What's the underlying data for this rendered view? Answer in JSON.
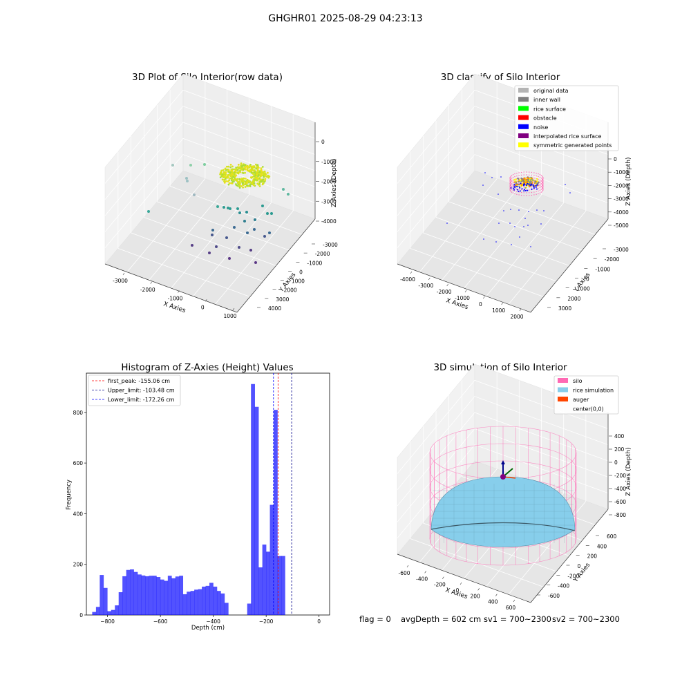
{
  "suptitle": "GHGHR01 2025-08-29 04:23:13",
  "panel_raw": {
    "title": "3D Plot of Silo Interior(row data)",
    "xlabel": "X Axies",
    "ylabel": "Y Axies",
    "zlabel": "Z Axies (Depth)",
    "xticks": [
      "-3000",
      "-2000",
      "-1000",
      "0",
      "1000"
    ],
    "yticks": [
      "-3000",
      "-2000",
      "-1000",
      "0",
      "1000",
      "2000",
      "3000",
      "4000"
    ],
    "zticks": [
      "0",
      "-1000",
      "-2000",
      "-3000",
      "-4000"
    ]
  },
  "panel_classify": {
    "title": "3D classify of Silo Interior",
    "xlabel": "X Axies",
    "ylabel": "Y Axies",
    "zlabel": "Z Axies (Depth)",
    "xticks": [
      "-4000",
      "-3000",
      "-2000",
      "-1000",
      "0",
      "1000",
      "2000"
    ],
    "yticks": [
      "-3000",
      "-2000",
      "-1000",
      "0",
      "1000",
      "2000",
      "3000"
    ],
    "zticks": [
      "0",
      "-1000",
      "-2000",
      "-3000",
      "-4000",
      "-5000"
    ],
    "legend": [
      {
        "label": "original data",
        "color": "#b4b4b4"
      },
      {
        "label": "inner wall",
        "color": "#808080"
      },
      {
        "label": "rice surface",
        "color": "#00ff00"
      },
      {
        "label": "obstacle",
        "color": "#ff0000"
      },
      {
        "label": "noise",
        "color": "#0000ff"
      },
      {
        "label": "interpolated rice surface",
        "color": "#800080"
      },
      {
        "label": "symmetric generated points",
        "color": "#ffff00"
      }
    ]
  },
  "panel_sim": {
    "title": "3D simulation of Silo Interior",
    "xlabel": "X Axies",
    "ylabel": "Y Axies",
    "zlabel": "Z Axies (Depth)",
    "xticks": [
      "-600",
      "-400",
      "-200",
      "0",
      "200",
      "400",
      "600"
    ],
    "yticks": [
      "-600",
      "-400",
      "-200",
      "0",
      "200",
      "400",
      "600"
    ],
    "zticks": [
      "400",
      "200",
      "0",
      "-200",
      "-400",
      "-600",
      "-800"
    ],
    "legend": [
      {
        "label": "silo",
        "color": "#ff69b4"
      },
      {
        "label": "rice simulation",
        "color": "#87ceeb"
      },
      {
        "label": "auger",
        "color": "#ff4500"
      },
      {
        "label": "center(0,0)",
        "color": ""
      }
    ]
  },
  "status_line": {
    "flag": "flag = 0",
    "avg": "avgDepth = 602 cm",
    "sv1": "sv1 = 700~2300",
    "sv2": "sv2 = 700~2300"
  },
  "chart_data": [
    {
      "type": "bar",
      "title": "Histogram of Z-Axies (Height) Values",
      "xlabel": "Depth (cm)",
      "ylabel": "Frequency",
      "xlim": [
        -880,
        40
      ],
      "ylim": [
        0,
        955
      ],
      "xticks": [
        -800,
        -600,
        -400,
        -200,
        0
      ],
      "yticks": [
        0,
        200,
        400,
        600,
        800
      ],
      "bin_edges_start": -858,
      "bin_width": 14.3,
      "values": [
        12,
        32,
        158,
        107,
        15,
        20,
        38,
        90,
        153,
        178,
        180,
        170,
        160,
        156,
        153,
        155,
        155,
        150,
        140,
        135,
        155,
        145,
        152,
        155,
        82,
        92,
        95,
        100,
        102,
        112,
        115,
        127,
        112,
        95,
        85,
        48,
        0,
        0,
        0,
        0,
        0,
        45,
        912,
        822,
        188,
        278,
        250,
        435,
        810,
        233,
        233
      ],
      "color": "#0000ff",
      "lines": [
        {
          "label": "first_peak: -155.06 cm",
          "x": -155.06,
          "color": "#ff0000"
        },
        {
          "label": "Upper_limit: -103.48 cm",
          "x": -103.48,
          "color": "#00008b"
        },
        {
          "label": "Lower_limit: -172.26 cm",
          "x": -172.26,
          "color": "#0000ff"
        }
      ],
      "legend_position": "upper left"
    }
  ]
}
